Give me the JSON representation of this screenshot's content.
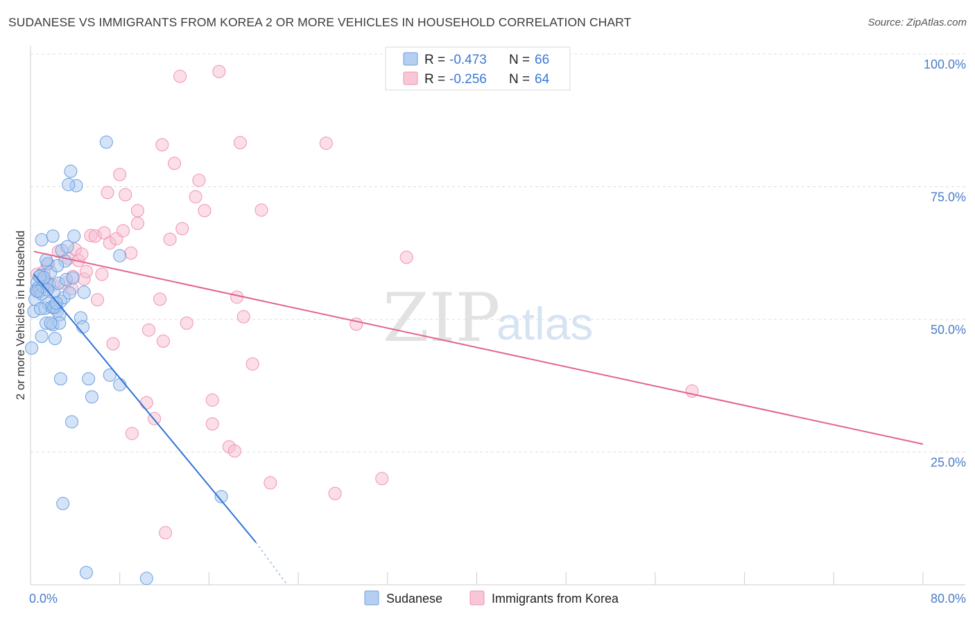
{
  "title": "SUDANESE VS IMMIGRANTS FROM KOREA 2 OR MORE VEHICLES IN HOUSEHOLD CORRELATION CHART",
  "source": "Source: ZipAtlas.com",
  "watermark": {
    "zip": "ZIP",
    "atlas": "atlas"
  },
  "legend": {
    "rows": [
      {
        "r_label": "R = ",
        "r_value": "-0.473",
        "n_label": "N = ",
        "n_value": "66"
      },
      {
        "r_label": "R = ",
        "r_value": "-0.256",
        "n_label": "N = ",
        "n_value": "64"
      }
    ]
  },
  "colors": {
    "sudanese_fill": "#a9c8f0",
    "sudanese_stroke": "#6b9fe0",
    "sudanese_line": "#2f72d6",
    "korea_fill": "#f7bdd0",
    "korea_stroke": "#ee93b2",
    "korea_line": "#e2638f",
    "tick_text": "#4a7cc9",
    "grid": "#dddddd"
  },
  "chart_data": {
    "type": "scatter",
    "title": "SUDANESE VS IMMIGRANTS FROM KOREA 2 OR MORE VEHICLES IN HOUSEHOLD CORRELATION CHART",
    "xlabel": "",
    "ylabel": "2 or more Vehicles in Household",
    "xlim": [
      0,
      80
    ],
    "ylim": [
      0,
      100
    ],
    "x_tick_labels": [
      "0.0%",
      "80.0%"
    ],
    "y_ticks": [
      25,
      50,
      75,
      100
    ],
    "y_tick_labels": [
      "25.0%",
      "50.0%",
      "75.0%",
      "100.0%"
    ],
    "grid": true,
    "legend_position": "top-center",
    "bottom_legend": [
      "Sudanese",
      "Immigrants from Korea"
    ],
    "series": [
      {
        "name": "Sudanese",
        "R": -0.473,
        "N": 66,
        "trend": {
          "x": [
            0.3,
            20.2
          ],
          "y": [
            58.5,
            8.0
          ],
          "dashed_to": [
            23.0,
            0.0
          ]
        },
        "points": [
          [
            0.1,
            44.6
          ],
          [
            0.3,
            51.5
          ],
          [
            0.4,
            53.8
          ],
          [
            0.5,
            55.5
          ],
          [
            0.6,
            57.0
          ],
          [
            0.7,
            56.0
          ],
          [
            0.8,
            55.2
          ],
          [
            0.9,
            58.3
          ],
          [
            1.0,
            46.8
          ],
          [
            1.0,
            54.8
          ],
          [
            1.1,
            56.2
          ],
          [
            1.2,
            57.4
          ],
          [
            1.3,
            52.1
          ],
          [
            1.4,
            49.3
          ],
          [
            1.5,
            60.5
          ],
          [
            1.6,
            53.0
          ],
          [
            1.7,
            56.5
          ],
          [
            1.8,
            58.9
          ],
          [
            1.9,
            52.3
          ],
          [
            2.0,
            49.0
          ],
          [
            2.1,
            55.1
          ],
          [
            2.2,
            46.4
          ],
          [
            2.3,
            52.2
          ],
          [
            2.4,
            51.6
          ],
          [
            2.5,
            56.8
          ],
          [
            2.6,
            50.9
          ],
          [
            2.7,
            53.4
          ],
          [
            2.8,
            63.0
          ],
          [
            3.0,
            54.1
          ],
          [
            3.1,
            61.0
          ],
          [
            1.0,
            65.0
          ],
          [
            2.0,
            65.7
          ],
          [
            2.6,
            49.3
          ],
          [
            1.4,
            61.2
          ],
          [
            0.8,
            58.1
          ],
          [
            1.5,
            55.6
          ],
          [
            2.1,
            52.3
          ],
          [
            2.3,
            53.1
          ],
          [
            1.8,
            49.3
          ],
          [
            0.6,
            55.3
          ],
          [
            3.3,
            63.7
          ],
          [
            3.5,
            55.0
          ],
          [
            3.2,
            57.5
          ],
          [
            3.6,
            77.9
          ],
          [
            3.8,
            57.8
          ],
          [
            3.9,
            65.7
          ],
          [
            4.1,
            75.2
          ],
          [
            4.5,
            50.3
          ],
          [
            4.7,
            48.6
          ],
          [
            4.8,
            55.1
          ],
          [
            5.2,
            38.8
          ],
          [
            5.5,
            35.4
          ],
          [
            5.0,
            2.3
          ],
          [
            6.8,
            83.4
          ],
          [
            7.1,
            39.5
          ],
          [
            8.0,
            37.7
          ],
          [
            3.7,
            30.7
          ],
          [
            2.7,
            38.8
          ],
          [
            3.4,
            75.4
          ],
          [
            2.9,
            15.3
          ],
          [
            17.1,
            16.6
          ],
          [
            10.4,
            1.2
          ],
          [
            8.0,
            62.0
          ],
          [
            1.2,
            57.9
          ],
          [
            0.9,
            52.0
          ],
          [
            2.4,
            60.1
          ]
        ]
      },
      {
        "name": "Immigrants from Korea",
        "R": -0.256,
        "N": 64,
        "trend": {
          "x": [
            0.3,
            80.0
          ],
          "y": [
            62.8,
            26.5
          ]
        },
        "points": [
          [
            0.6,
            58.5
          ],
          [
            0.9,
            56.0
          ],
          [
            1.2,
            59.0
          ],
          [
            1.4,
            57.2
          ],
          [
            1.6,
            60.5
          ],
          [
            2.0,
            56.5
          ],
          [
            2.5,
            62.8
          ],
          [
            3.1,
            56.8
          ],
          [
            3.4,
            61.5
          ],
          [
            3.8,
            58.1
          ],
          [
            4.0,
            63.2
          ],
          [
            4.3,
            61.1
          ],
          [
            4.6,
            62.3
          ],
          [
            4.8,
            57.6
          ],
          [
            5.0,
            59.0
          ],
          [
            5.4,
            65.8
          ],
          [
            5.8,
            65.7
          ],
          [
            6.0,
            53.7
          ],
          [
            6.4,
            58.5
          ],
          [
            6.6,
            66.3
          ],
          [
            6.9,
            73.9
          ],
          [
            7.1,
            64.4
          ],
          [
            7.4,
            45.4
          ],
          [
            7.7,
            65.2
          ],
          [
            8.0,
            77.3
          ],
          [
            8.3,
            66.7
          ],
          [
            8.5,
            73.5
          ],
          [
            9.0,
            62.5
          ],
          [
            9.6,
            70.5
          ],
          [
            9.6,
            68.1
          ],
          [
            10.4,
            34.3
          ],
          [
            10.6,
            48.0
          ],
          [
            11.1,
            31.3
          ],
          [
            11.6,
            53.8
          ],
          [
            11.8,
            82.9
          ],
          [
            12.5,
            65.1
          ],
          [
            12.9,
            79.4
          ],
          [
            13.6,
            67.1
          ],
          [
            14.0,
            49.3
          ],
          [
            14.8,
            73.1
          ],
          [
            15.1,
            76.2
          ],
          [
            15.6,
            70.5
          ],
          [
            16.3,
            34.8
          ],
          [
            16.3,
            30.3
          ],
          [
            17.8,
            26.0
          ],
          [
            18.3,
            25.2
          ],
          [
            18.5,
            54.2
          ],
          [
            19.1,
            50.5
          ],
          [
            19.9,
            41.6
          ],
          [
            20.7,
            70.6
          ],
          [
            21.5,
            19.2
          ],
          [
            26.5,
            83.2
          ],
          [
            27.3,
            17.2
          ],
          [
            29.2,
            49.1
          ],
          [
            31.5,
            20.0
          ],
          [
            33.7,
            61.7
          ],
          [
            59.3,
            36.5
          ],
          [
            13.4,
            95.8
          ],
          [
            16.9,
            96.7
          ],
          [
            12.1,
            9.8
          ],
          [
            9.1,
            28.5
          ],
          [
            11.9,
            45.9
          ],
          [
            18.8,
            83.3
          ],
          [
            3.7,
            55.8
          ]
        ]
      }
    ]
  }
}
